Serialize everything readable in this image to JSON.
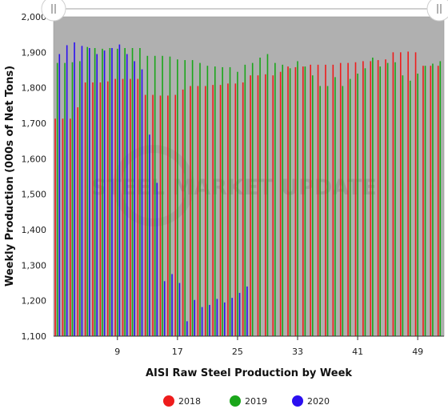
{
  "chart_data": {
    "type": "bar",
    "title": "",
    "xlabel": "AISI Raw Steel Production by Week",
    "ylabel": "Weekly Production (000s of Net Tons)",
    "ylim": [
      1100,
      2000
    ],
    "yticks": [
      "1,100",
      "1,200",
      "1,300",
      "1,400",
      "1,500",
      "1,600",
      "1,700",
      "1,800",
      "1,900",
      "2,000"
    ],
    "xticks": [
      "9",
      "17",
      "25",
      "33",
      "41",
      "49"
    ],
    "xtick_weeks": [
      9,
      17,
      25,
      33,
      41,
      49
    ],
    "grid": false,
    "legend_position": "bottom",
    "watermark": "STEEL MARKET UPDATE",
    "series": [
      {
        "name": "2018",
        "color": "#ee1c1c",
        "weeks_start": 1,
        "values": [
          1713,
          1713,
          1713,
          1745,
          1815,
          1815,
          1815,
          1818,
          1825,
          1825,
          1825,
          1825,
          1780,
          1780,
          1778,
          1778,
          1780,
          1795,
          1805,
          1805,
          1805,
          1808,
          1808,
          1812,
          1812,
          1815,
          1835,
          1835,
          1838,
          1835,
          1845,
          1860,
          1858,
          1860,
          1865,
          1865,
          1865,
          1865,
          1870,
          1870,
          1872,
          1875,
          1875,
          1878,
          1880,
          1900,
          1900,
          1902,
          1900,
          1862,
          1862,
          1862
        ]
      },
      {
        "name": "2019",
        "color": "#1aa61a",
        "weeks_start": 1,
        "values": [
          1870,
          1870,
          1872,
          1875,
          1915,
          1912,
          1910,
          1912,
          1910,
          1912,
          1912,
          1912,
          1890,
          1890,
          1890,
          1888,
          1880,
          1878,
          1878,
          1870,
          1862,
          1860,
          1858,
          1858,
          1845,
          1865,
          1870,
          1885,
          1895,
          1870,
          1865,
          1855,
          1875,
          1860,
          1835,
          1805,
          1805,
          1830,
          1805,
          1825,
          1840,
          1855,
          1885,
          1860,
          1870,
          1872,
          1835,
          1820,
          1840,
          1862,
          1868,
          1875
        ]
      },
      {
        "name": "2020",
        "color": "#2b0ff0",
        "weeks_start": 1,
        "values": [
          1895,
          1920,
          1928,
          1918,
          1912,
          1895,
          1905,
          1912,
          1922,
          1895,
          1875,
          1852,
          1668,
          1532,
          1255,
          1275,
          1250,
          1142,
          1202,
          1182,
          1188,
          1205,
          1195,
          1208,
          1222,
          1240
        ]
      }
    ]
  }
}
